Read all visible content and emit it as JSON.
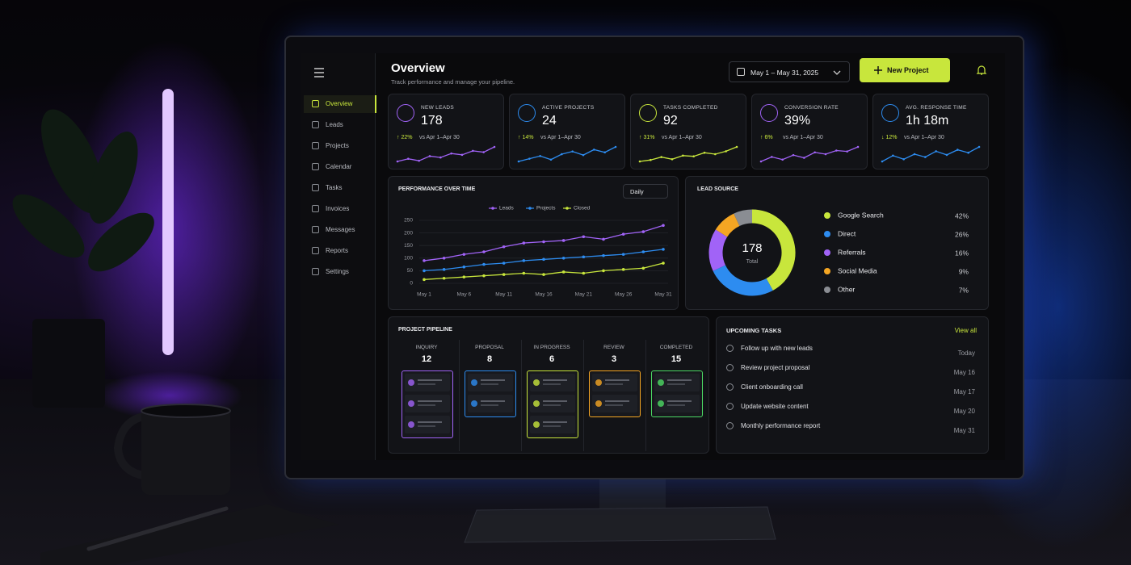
{
  "header": {
    "title": "Overview",
    "subtitle": "Track performance and manage your pipeline.",
    "date_range": "May 1 – May 31, 2025",
    "button": "New Project"
  },
  "sidebar": {
    "items": [
      "Overview",
      "Leads",
      "Projects",
      "Calendar",
      "Tasks",
      "Invoices",
      "Messages",
      "Reports",
      "Settings"
    ]
  },
  "kpis": [
    {
      "label": "NEW LEADS",
      "value": "178",
      "change": "↑ 22%",
      "comparison": "vs Apr 1–Apr 30",
      "color": "#a163f7",
      "trend": [
        30,
        34,
        31,
        38,
        36,
        42,
        40,
        46,
        44,
        52
      ]
    },
    {
      "label": "ACTIVE PROJECTS",
      "value": "24",
      "change": "↑ 14%",
      "comparison": "vs Apr 1–Apr 30",
      "color": "#2d8cf0",
      "trend": [
        30,
        33,
        36,
        32,
        38,
        41,
        37,
        43,
        40,
        46
      ]
    },
    {
      "label": "TASKS COMPLETED",
      "value": "92",
      "change": "↑ 31%",
      "comparison": "vs Apr 1–Apr 30",
      "color": "#c8e63c",
      "trend": [
        28,
        30,
        34,
        31,
        36,
        35,
        40,
        38,
        42,
        48
      ]
    },
    {
      "label": "CONVERSION RATE",
      "value": "39%",
      "change": "↑ 6%",
      "comparison": "vs Apr 1–Apr 30",
      "color": "#a163f7",
      "trend": [
        30,
        35,
        32,
        37,
        34,
        40,
        38,
        42,
        41,
        46
      ]
    },
    {
      "label": "AVG. RESPONSE TIME",
      "value": "1h 18m",
      "change": "↓ 12%",
      "comparison": "vs Apr 1–Apr 30",
      "color": "#2d8cf0",
      "trend": [
        30,
        38,
        33,
        40,
        36,
        44,
        39,
        46,
        42,
        50
      ]
    }
  ],
  "chart_data": [
    {
      "type": "line",
      "title": "PERFORMANCE OVER TIME",
      "period": "Daily",
      "categories": [
        "May 1",
        null,
        "May 6",
        null,
        "May 11",
        null,
        "May 16",
        null,
        "May 21",
        null,
        "May 26",
        null,
        "May 31"
      ],
      "series": [
        {
          "name": "Leads",
          "color": "#a163f7",
          "values": [
            90,
            100,
            115,
            125,
            145,
            160,
            165,
            170,
            185,
            175,
            195,
            205,
            230
          ]
        },
        {
          "name": "Projects",
          "color": "#2d8cf0",
          "values": [
            50,
            55,
            65,
            75,
            80,
            90,
            95,
            100,
            105,
            110,
            115,
            125,
            135
          ]
        },
        {
          "name": "Closed",
          "color": "#c8e63c",
          "values": [
            15,
            20,
            25,
            30,
            35,
            40,
            35,
            45,
            40,
            50,
            55,
            60,
            80
          ]
        }
      ],
      "ylim": [
        0,
        250
      ],
      "yticks": [
        0,
        50,
        100,
        150,
        200,
        250
      ],
      "grid": true
    },
    {
      "type": "pie",
      "title": "LEAD SOURCE",
      "categories": [
        "Google Search",
        "Direct",
        "Referrals",
        "Social Media",
        "Other"
      ],
      "values": [
        42,
        26,
        16,
        9,
        7
      ],
      "value_labels": [
        "42%",
        "26%",
        "16%",
        "9%",
        "7%"
      ],
      "colors": [
        "#c8e63c",
        "#2d8cf0",
        "#a163f7",
        "#f5a623",
        "#8a8d93"
      ],
      "center_value": "178",
      "center_label": "Total"
    }
  ],
  "pipeline": {
    "title": "PROJECT PIPELINE",
    "stages": [
      {
        "name": "INQUIRY",
        "count": "12",
        "color": "#a163f7"
      },
      {
        "name": "PROPOSAL",
        "count": "8",
        "color": "#2d8cf0"
      },
      {
        "name": "IN PROGRESS",
        "count": "6",
        "color": "#c8e63c"
      },
      {
        "name": "REVIEW",
        "count": "3",
        "color": "#f5a623"
      },
      {
        "name": "COMPLETED",
        "count": "15",
        "color": "#4cd964"
      }
    ]
  },
  "tasks": {
    "title": "UPCOMING TASKS",
    "link": "View all",
    "items": [
      {
        "text": "Follow up with new leads",
        "date": "Today"
      },
      {
        "text": "Review project proposal",
        "date": "May 16"
      },
      {
        "text": "Client onboarding call",
        "date": "May 17"
      },
      {
        "text": "Update website content",
        "date": "May 20"
      },
      {
        "text": "Monthly performance report",
        "date": "May 31"
      }
    ]
  }
}
